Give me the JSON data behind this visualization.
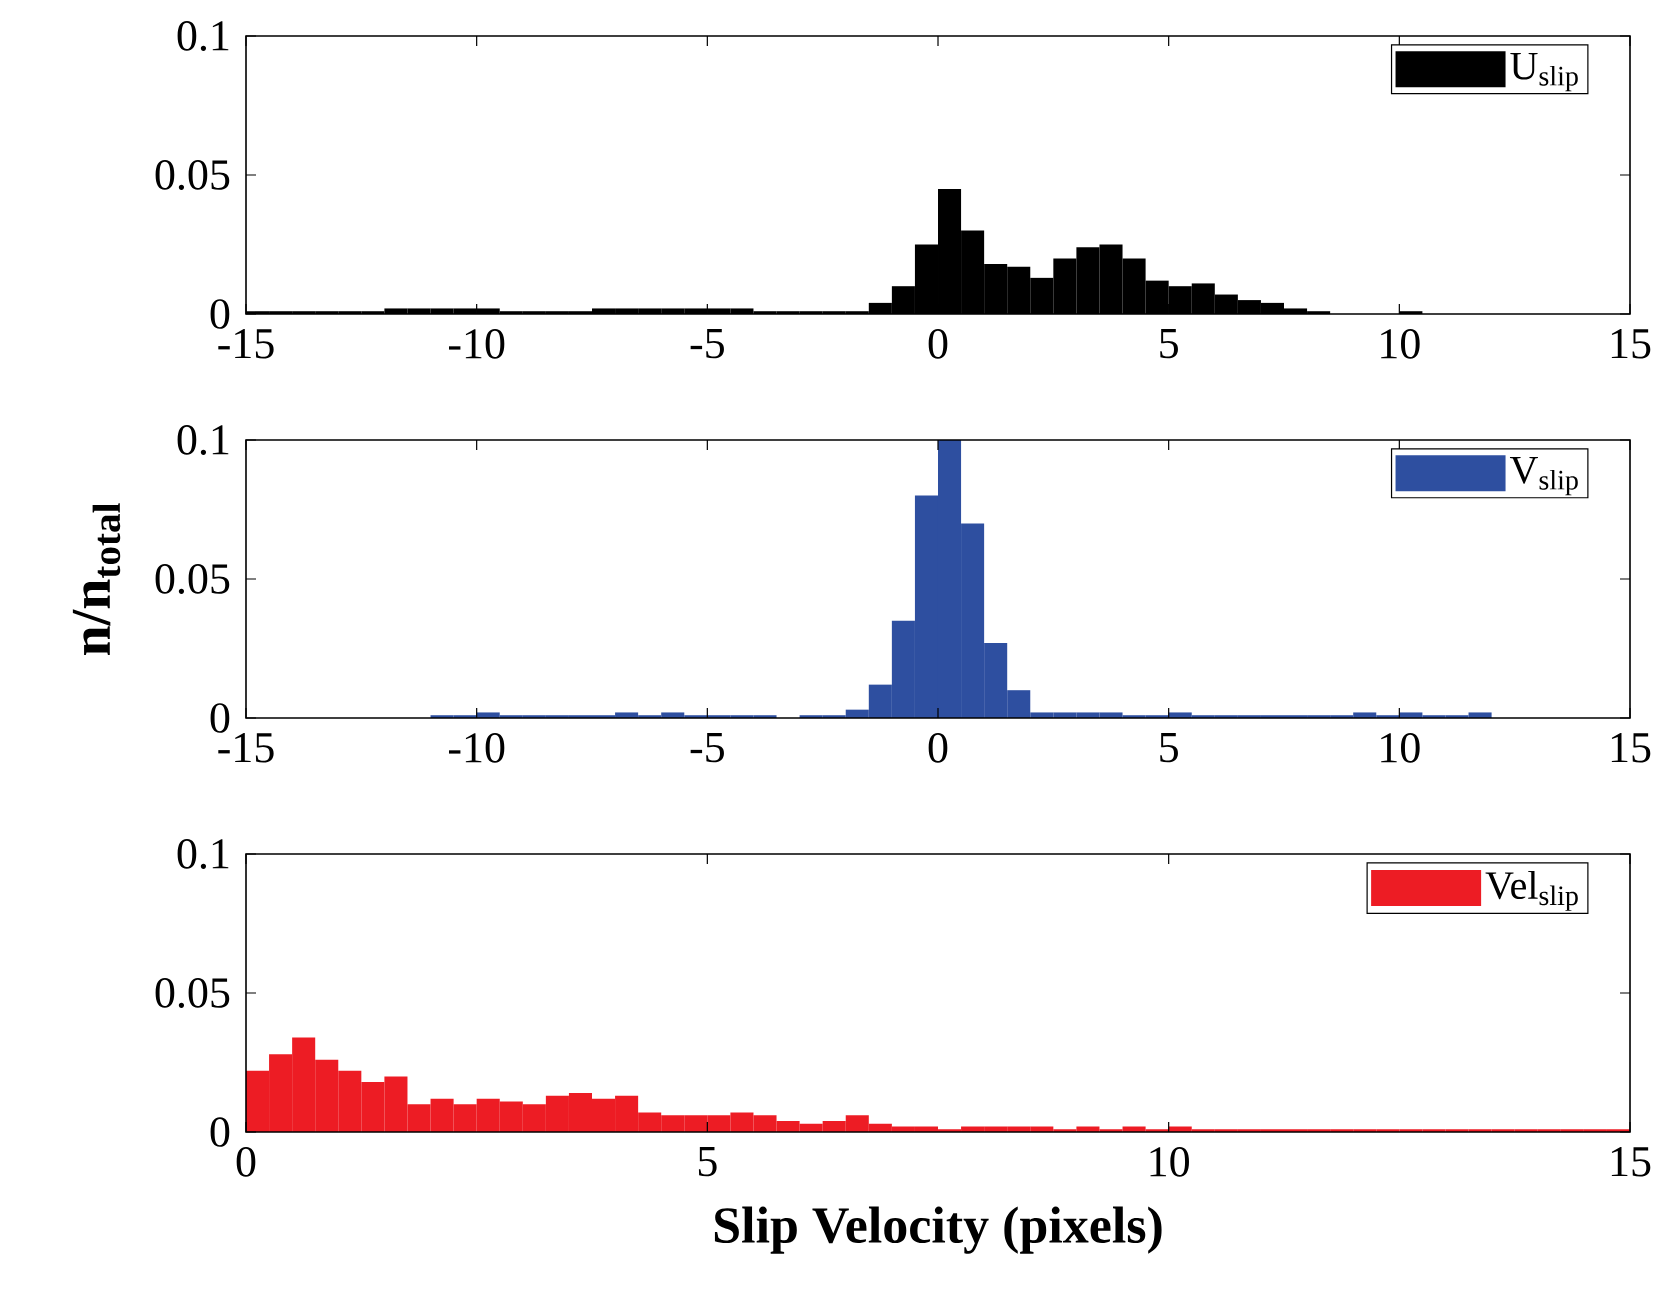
{
  "chart_data": [
    {
      "type": "histogram",
      "xlim": [
        -15,
        15
      ],
      "ylim": [
        0,
        0.1
      ],
      "xticks": [
        -15,
        -10,
        -5,
        0,
        5,
        10,
        15
      ],
      "yticks": [
        0,
        0.05,
        0.1
      ],
      "legend": "top right",
      "bins": [
        -15,
        -14.5,
        -14,
        -13.5,
        -13,
        -12.5,
        -12,
        -11.5,
        -11,
        -10.5,
        -10,
        -9.5,
        -9,
        -8.5,
        -8,
        -7.5,
        -7,
        -6.5,
        -6,
        -5.5,
        -5,
        -4.5,
        -4,
        -3.5,
        -3,
        -2.5,
        -2,
        -1.5,
        -1,
        -0.5,
        0,
        0.5,
        1,
        1.5,
        2,
        2.5,
        3,
        3.5,
        4,
        4.5,
        5,
        5.5,
        6,
        6.5,
        7,
        7.5,
        8,
        8.5,
        9,
        9.5,
        10,
        10.5,
        11,
        11.5,
        12,
        12.5,
        13,
        13.5,
        14,
        14.5,
        15
      ],
      "series": [
        {
          "name": "U$_{slip}$",
          "color": "#000000",
          "values": [
            0.001,
            0.001,
            0.001,
            0.001,
            0.001,
            0.001,
            0.002,
            0.002,
            0.002,
            0.002,
            0.002,
            0.001,
            0.001,
            0.001,
            0.001,
            0.002,
            0.002,
            0.002,
            0.002,
            0.002,
            0.002,
            0.002,
            0.001,
            0.001,
            0.001,
            0.001,
            0.001,
            0.004,
            0.01,
            0.025,
            0.045,
            0.03,
            0.018,
            0.017,
            0.013,
            0.02,
            0.024,
            0.025,
            0.02,
            0.012,
            0.01,
            0.011,
            0.007,
            0.005,
            0.004,
            0.002,
            0.001,
            0,
            0,
            0,
            0.001,
            0,
            0,
            0,
            0,
            0,
            0,
            0,
            0,
            0
          ]
        }
      ]
    },
    {
      "type": "histogram",
      "ylabel": "n/n$_{total}$",
      "xlim": [
        -15,
        15
      ],
      "ylim": [
        0,
        0.1
      ],
      "xticks": [
        -15,
        -10,
        -5,
        0,
        5,
        10,
        15
      ],
      "yticks": [
        0,
        0.05,
        0.1
      ],
      "legend": "top right",
      "bins": [
        -15,
        -14.5,
        -14,
        -13.5,
        -13,
        -12.5,
        -12,
        -11.5,
        -11,
        -10.5,
        -10,
        -9.5,
        -9,
        -8.5,
        -8,
        -7.5,
        -7,
        -6.5,
        -6,
        -5.5,
        -5,
        -4.5,
        -4,
        -3.5,
        -3,
        -2.5,
        -2,
        -1.5,
        -1,
        -0.5,
        0,
        0.5,
        1,
        1.5,
        2,
        2.5,
        3,
        3.5,
        4,
        4.5,
        5,
        5.5,
        6,
        6.5,
        7,
        7.5,
        8,
        8.5,
        9,
        9.5,
        10,
        10.5,
        11,
        11.5,
        12,
        12.5,
        13,
        13.5,
        14,
        14.5,
        15
      ],
      "series": [
        {
          "name": "V$_{slip}$",
          "color": "#2e4fa0",
          "values": [
            0,
            0,
            0,
            0,
            0,
            0,
            0,
            0,
            0.001,
            0.001,
            0.002,
            0.001,
            0.001,
            0.001,
            0.001,
            0.001,
            0.002,
            0.001,
            0.002,
            0.001,
            0.001,
            0.001,
            0.001,
            0,
            0.001,
            0.001,
            0.003,
            0.012,
            0.035,
            0.08,
            0.1,
            0.07,
            0.027,
            0.01,
            0.002,
            0.002,
            0.002,
            0.002,
            0.001,
            0.001,
            0.002,
            0.001,
            0.001,
            0.001,
            0.001,
            0.001,
            0.001,
            0.001,
            0.002,
            0.001,
            0.002,
            0.001,
            0.001,
            0.002,
            0,
            0,
            0,
            0,
            0,
            0
          ]
        }
      ]
    },
    {
      "type": "histogram",
      "xlabel": "Slip Velocity (pixels)",
      "xlim": [
        0,
        15
      ],
      "ylim": [
        0,
        0.1
      ],
      "xticks": [
        0,
        5,
        10,
        15
      ],
      "yticks": [
        0,
        0.05,
        0.1
      ],
      "legend": "top right",
      "bins": [
        0,
        0.25,
        0.5,
        0.75,
        1,
        1.25,
        1.5,
        1.75,
        2,
        2.25,
        2.5,
        2.75,
        3,
        3.25,
        3.5,
        3.75,
        4,
        4.25,
        4.5,
        4.75,
        5,
        5.25,
        5.5,
        5.75,
        6,
        6.25,
        6.5,
        6.75,
        7,
        7.25,
        7.5,
        7.75,
        8,
        8.25,
        8.5,
        8.75,
        9,
        9.25,
        9.5,
        9.75,
        10,
        10.25,
        10.5,
        10.75,
        11,
        11.25,
        11.5,
        11.75,
        12,
        12.25,
        12.5,
        12.75,
        13,
        13.25,
        13.5,
        13.75,
        14,
        14.25,
        14.5,
        14.75,
        15
      ],
      "series": [
        {
          "name": "Vel$_{slip}$",
          "color": "#ed1c24",
          "values": [
            0.022,
            0.028,
            0.034,
            0.026,
            0.022,
            0.018,
            0.02,
            0.01,
            0.012,
            0.01,
            0.012,
            0.011,
            0.01,
            0.013,
            0.014,
            0.012,
            0.013,
            0.007,
            0.006,
            0.006,
            0.006,
            0.007,
            0.006,
            0.004,
            0.003,
            0.004,
            0.006,
            0.003,
            0.002,
            0.002,
            0.001,
            0.002,
            0.002,
            0.002,
            0.002,
            0.001,
            0.002,
            0.001,
            0.002,
            0.001,
            0.002,
            0.001,
            0.001,
            0.001,
            0.001,
            0.001,
            0.001,
            0.001,
            0.001,
            0.001,
            0.001,
            0.001,
            0.001,
            0.001,
            0.001,
            0.001,
            0.001,
            0.001,
            0.001,
            0.001
          ]
        }
      ]
    }
  ]
}
